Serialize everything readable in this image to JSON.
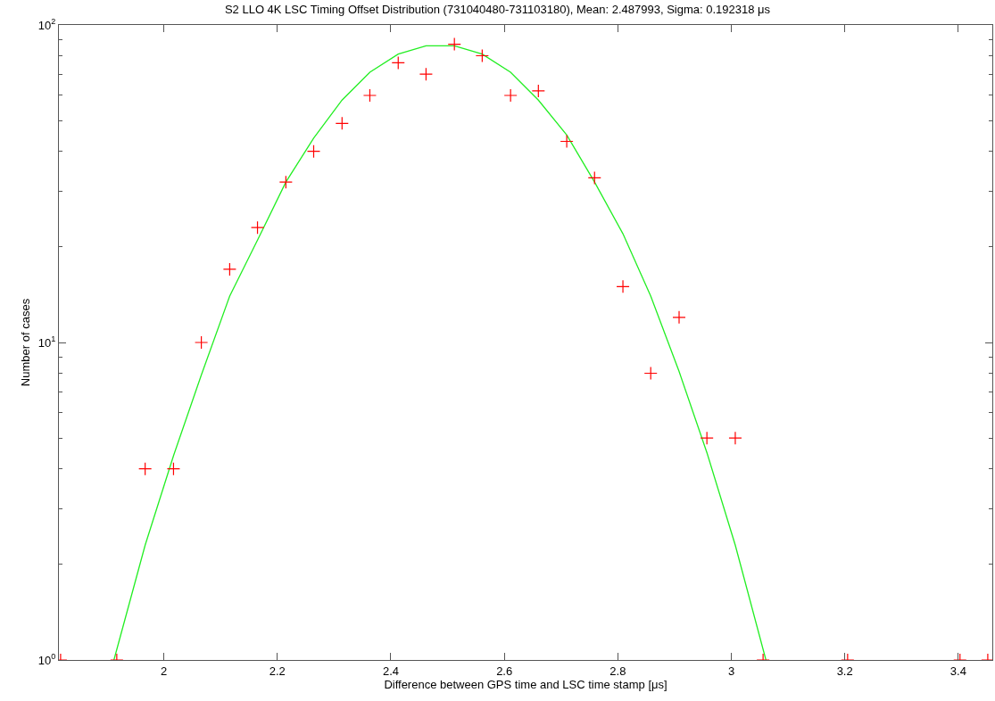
{
  "chart_data": {
    "type": "scatter",
    "title": "S2 LLO 4K LSC Timing Offset Distribution (731040480-731103180), Mean: 2.487993, Sigma: 0.192318 μs",
    "xlabel": "Difference between GPS time and LSC time stamp [μs]",
    "ylabel": "Number of cases",
    "series": [
      {
        "color": "#ff0000",
        "marker": "cross",
        "x": [
          1.818,
          1.917,
          1.967,
          2.017,
          2.066,
          2.116,
          2.165,
          2.215,
          2.264,
          2.314,
          2.363,
          2.413,
          2.462,
          2.512,
          2.561,
          2.611,
          2.66,
          2.71,
          2.759,
          2.809,
          2.858,
          2.908,
          2.957,
          3.007,
          3.056,
          3.205,
          3.403,
          3.452
        ],
        "values": [
          1,
          1,
          4,
          4,
          10,
          17,
          23,
          32,
          40,
          49,
          60,
          76,
          70,
          87,
          80,
          60,
          62,
          43,
          33,
          15,
          8,
          12,
          5,
          5,
          1,
          1,
          1,
          1
        ]
      },
      {
        "type": "line",
        "color": "#22ee22",
        "marker": "none",
        "line_style": "solid",
        "x": [
          1.912,
          1.967,
          2.017,
          2.066,
          2.116,
          2.165,
          2.215,
          2.264,
          2.314,
          2.363,
          2.413,
          2.462,
          2.512,
          2.561,
          2.611,
          2.66,
          2.71,
          2.759,
          2.809,
          2.858,
          2.908,
          2.957,
          3.007,
          3.061
        ],
        "values": [
          1.0,
          2.3,
          4.4,
          7.9,
          14,
          21,
          32,
          44,
          58,
          71,
          81,
          86,
          86,
          81,
          71,
          58,
          45,
          32,
          22,
          14,
          8.1,
          4.5,
          2.3,
          1.0
        ]
      }
    ],
    "xlim": [
      1.815,
      3.46
    ],
    "xticks": [
      2,
      2.2,
      2.4,
      2.6,
      2.8,
      3,
      3.2,
      3.4
    ],
    "ylim": [
      1,
      100
    ],
    "log": "y",
    "yticks": [
      {
        "value": 1,
        "label": "10$^{0}$"
      },
      {
        "value": 2,
        "label": null
      },
      {
        "value": 3,
        "label": null
      },
      {
        "value": 4,
        "label": null
      },
      {
        "value": 5,
        "label": null
      },
      {
        "value": 6,
        "label": null
      },
      {
        "value": 7,
        "label": null
      },
      {
        "value": 8,
        "label": null
      },
      {
        "value": 9,
        "label": null
      },
      {
        "value": 10,
        "label": "10$^{1}$"
      },
      {
        "value": 20,
        "label": null
      },
      {
        "value": 30,
        "label": null
      },
      {
        "value": 40,
        "label": null
      },
      {
        "value": 50,
        "label": null
      },
      {
        "value": 60,
        "label": null
      },
      {
        "value": 70,
        "label": null
      },
      {
        "value": 80,
        "label": null
      },
      {
        "value": 90,
        "label": null
      },
      {
        "value": 100,
        "label": "10$^{2}$"
      }
    ],
    "grid": false
  }
}
